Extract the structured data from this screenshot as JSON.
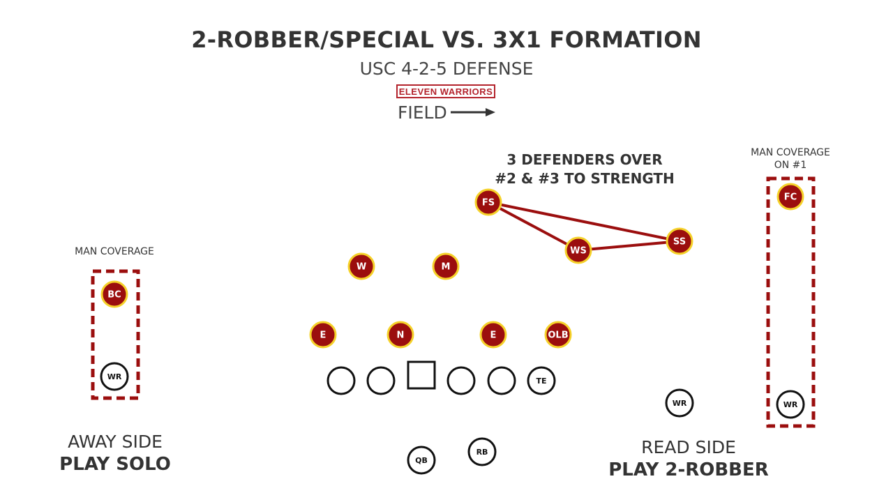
{
  "title": "2-ROBBER/SPECIAL VS. 3X1 FORMATION",
  "subtitle": "USC 4-2-5 DEFENSE",
  "logo": "ELEVEN WARRIORS",
  "field_label": "FIELD",
  "colors": {
    "defender_fill": "#9b0e0e",
    "defender_ring": "#f5d22a",
    "coverage_box": "#9b0e0e",
    "offense": "#111111"
  },
  "notes": {
    "strength_line1": "3 DEFENDERS OVER",
    "strength_line2": "#2 & #3 TO STRENGTH",
    "man_right_line1": "MAN COVERAGE",
    "man_right_line2": "ON #1",
    "man_left": "MAN COVERAGE"
  },
  "sides": {
    "away_line1": "AWAY SIDE",
    "away_line2": "PLAY SOLO",
    "read_line1": "READ SIDE",
    "read_line2": "PLAY 2-ROBBER"
  },
  "defense": [
    "FS",
    "WS",
    "SS",
    "FC",
    "BC",
    "W",
    "M",
    "E",
    "N",
    "E",
    "OLB"
  ],
  "offense": [
    "",
    "",
    "",
    "",
    "",
    "TE",
    "WR",
    "WR",
    "WR",
    "QB",
    "RB"
  ]
}
